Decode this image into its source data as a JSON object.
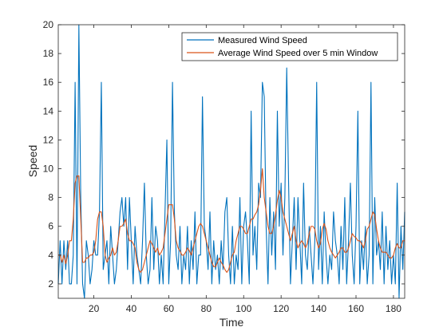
{
  "chart_data": {
    "type": "line",
    "title": "",
    "xlabel": "Time",
    "ylabel": "Speed",
    "xlim": [
      1,
      186
    ],
    "ylim": [
      1,
      20
    ],
    "xticks": [
      20,
      40,
      60,
      80,
      100,
      120,
      140,
      160,
      180
    ],
    "yticks": [
      2,
      4,
      6,
      8,
      10,
      12,
      14,
      16,
      18,
      20
    ],
    "grid": false,
    "legend_position": "top-right",
    "series": [
      {
        "name": "Measured Wind Speed",
        "color": "#0072BD",
        "x": [
          1,
          2,
          3,
          4,
          5,
          6,
          7,
          8,
          9,
          10,
          11,
          12,
          13,
          14,
          15,
          16,
          17,
          18,
          19,
          20,
          21,
          22,
          23,
          24,
          25,
          26,
          27,
          28,
          29,
          30,
          31,
          32,
          33,
          34,
          35,
          36,
          37,
          38,
          39,
          40,
          41,
          42,
          43,
          44,
          45,
          46,
          47,
          48,
          49,
          50,
          51,
          52,
          53,
          54,
          55,
          56,
          57,
          58,
          59,
          60,
          61,
          62,
          63,
          64,
          65,
          66,
          67,
          68,
          69,
          70,
          71,
          72,
          73,
          74,
          75,
          76,
          77,
          78,
          79,
          80,
          81,
          82,
          83,
          84,
          85,
          86,
          87,
          88,
          89,
          90,
          91,
          92,
          93,
          94,
          95,
          96,
          97,
          98,
          99,
          100,
          101,
          102,
          103,
          104,
          105,
          106,
          107,
          108,
          109,
          110,
          111,
          112,
          113,
          114,
          115,
          116,
          117,
          118,
          119,
          120,
          121,
          122,
          123,
          124,
          125,
          126,
          127,
          128,
          129,
          130,
          131,
          132,
          133,
          134,
          135,
          136,
          137,
          138,
          139,
          140,
          141,
          142,
          143,
          144,
          145,
          146,
          147,
          148,
          149,
          150,
          151,
          152,
          153,
          154,
          155,
          156,
          157,
          158,
          159,
          160,
          161,
          162,
          163,
          164,
          165,
          166,
          167,
          168,
          169,
          170,
          171,
          172,
          173,
          174,
          175,
          176,
          177,
          178,
          179,
          180,
          181,
          182,
          183,
          184,
          185,
          186
        ],
        "values": [
          2,
          5,
          2,
          5,
          3,
          5,
          2,
          2,
          4,
          16,
          2,
          20,
          8,
          2,
          1,
          5,
          4,
          2,
          3,
          5,
          4,
          4,
          7,
          16,
          3,
          4,
          5,
          2,
          6,
          4,
          2,
          3,
          5,
          7,
          8,
          6,
          8,
          3,
          8,
          5,
          2,
          6,
          4,
          3,
          2,
          5,
          9,
          4,
          2,
          3,
          8,
          3,
          6,
          5,
          2,
          4,
          2,
          7,
          12,
          2,
          5,
          16,
          7,
          4,
          3,
          6,
          2,
          4,
          3,
          6,
          2,
          5,
          3,
          7,
          2,
          4,
          4,
          15,
          6,
          5,
          3,
          7,
          2,
          5,
          3,
          4,
          2,
          5,
          3,
          7,
          8,
          4,
          2,
          6,
          2,
          4,
          3,
          8,
          2,
          6,
          7,
          5,
          2,
          14,
          4,
          6,
          3,
          9,
          8,
          16,
          15,
          6,
          2,
          8,
          4,
          7,
          3,
          14,
          6,
          9,
          4,
          8,
          17,
          9,
          2,
          5,
          8,
          3,
          8,
          5,
          2,
          9,
          4,
          3,
          6,
          4,
          2,
          5,
          16,
          3,
          6,
          2,
          7,
          4,
          2,
          4,
          3,
          7,
          5,
          4,
          2,
          6,
          3,
          8,
          2,
          5,
          9,
          4,
          2,
          6,
          14,
          2,
          5,
          3,
          6,
          2,
          4,
          16,
          2,
          8,
          4,
          5,
          3,
          7,
          2,
          6,
          3,
          5,
          2,
          4,
          2,
          9,
          1,
          6,
          3,
          7
        ]
      },
      {
        "name": "Average Wind Speed over 5 min Window",
        "color": "#D95319",
        "x": [
          1,
          2,
          3,
          4,
          5,
          6,
          7,
          8,
          9,
          10,
          11,
          12,
          13,
          14,
          15,
          16,
          17,
          18,
          19,
          20,
          21,
          22,
          23,
          24,
          25,
          26,
          27,
          28,
          29,
          30,
          31,
          32,
          33,
          34,
          35,
          36,
          37,
          38,
          39,
          40,
          41,
          42,
          43,
          44,
          45,
          46,
          47,
          48,
          49,
          50,
          51,
          52,
          53,
          54,
          55,
          56,
          57,
          58,
          59,
          60,
          61,
          62,
          63,
          64,
          65,
          66,
          67,
          68,
          69,
          70,
          71,
          72,
          73,
          74,
          75,
          76,
          77,
          78,
          79,
          80,
          81,
          82,
          83,
          84,
          85,
          86,
          87,
          88,
          89,
          90,
          91,
          92,
          93,
          94,
          95,
          96,
          97,
          98,
          99,
          100,
          101,
          102,
          103,
          104,
          105,
          106,
          107,
          108,
          109,
          110,
          111,
          112,
          113,
          114,
          115,
          116,
          117,
          118,
          119,
          120,
          121,
          122,
          123,
          124,
          125,
          126,
          127,
          128,
          129,
          130,
          131,
          132,
          133,
          134,
          135,
          136,
          137,
          138,
          139,
          140,
          141,
          142,
          143,
          144,
          145,
          146,
          147,
          148,
          149,
          150,
          151,
          152,
          153,
          154,
          155,
          156,
          157,
          158,
          159,
          160,
          161,
          162,
          163,
          164,
          165,
          166,
          167,
          168,
          169,
          170,
          171,
          172,
          173,
          174,
          175,
          176,
          177,
          178,
          179,
          180,
          181,
          182,
          183,
          184,
          185,
          186
        ],
        "values": [
          4,
          4,
          3.5,
          4,
          3.4,
          4,
          5,
          5,
          6.5,
          9,
          9.5,
          9.5,
          6.5,
          3.5,
          3.5,
          3.8,
          3.8,
          4,
          4,
          4.2,
          5,
          6.5,
          7,
          7,
          6,
          4,
          3.5,
          3.8,
          4,
          4.5,
          4,
          4.2,
          5,
          6,
          6,
          6.2,
          6.5,
          5.5,
          5,
          5,
          4.8,
          4.5,
          3.5,
          3,
          2.8,
          3,
          3.5,
          4,
          4.5,
          5,
          4.8,
          4.5,
          4.2,
          4.5,
          4,
          4.2,
          4.5,
          5.5,
          6.5,
          7.5,
          7.5,
          7.5,
          6.5,
          5,
          4.5,
          4.3,
          4,
          4,
          4.2,
          4.5,
          4.3,
          4,
          4.5,
          5,
          5.5,
          6,
          6.2,
          6,
          5.5,
          5,
          4.5,
          4,
          3.5,
          3.2,
          3.2,
          3.5,
          3.8,
          3.5,
          3.3,
          3,
          2.8,
          3,
          3.5,
          4,
          4.2,
          5,
          5.5,
          6,
          6,
          5.8,
          5.5,
          5.5,
          6,
          6.5,
          6.5,
          6.8,
          7,
          7.5,
          8.5,
          10,
          8,
          7,
          6,
          5.5,
          5.5,
          6,
          6.8,
          7.8,
          8.5,
          8,
          7,
          6.5,
          6,
          5.5,
          5,
          5.5,
          6,
          5,
          4.5,
          4.8,
          5,
          4.8,
          4.5,
          4.8,
          5.5,
          6,
          6,
          5.8,
          5,
          4.5,
          4.8,
          5.8,
          6.2,
          5.8,
          5,
          4.5,
          4.2,
          4,
          3.8,
          4,
          4.2,
          4.5,
          4.5,
          4.2,
          4.2,
          4.5,
          5,
          5.5,
          5.3,
          5.2,
          5,
          5,
          4.8,
          4.5,
          5,
          5.8,
          6,
          6.5,
          7,
          6.8,
          5.8,
          5,
          4.5,
          4.2,
          4.2,
          4.2,
          4,
          3.8,
          3.8,
          4,
          4.5,
          4.8,
          4.5,
          4.5,
          5,
          5
        ]
      }
    ]
  }
}
